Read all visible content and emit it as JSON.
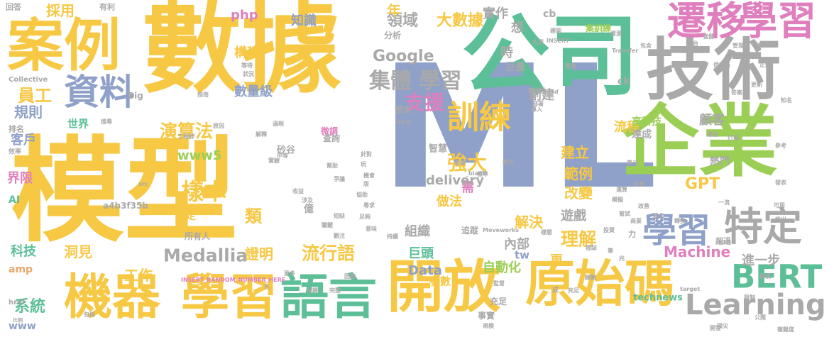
{
  "palette": {
    "yellow": "#f7c844",
    "teal": "#5dbf98",
    "blue": "#8fa1c8",
    "green": "#9bce55",
    "gray": "#a9a9a9",
    "pink": "#df7fbe",
    "orange": "#eaa76a",
    "light": "#d9d9d9"
  },
  "words": [
    {
      "t": "ML",
      "c": "blue"
    },
    {
      "t": "模型",
      "c": "yellow"
    },
    {
      "t": "數據",
      "c": "yellow"
    },
    {
      "t": "公司",
      "c": "teal"
    },
    {
      "t": "企業",
      "c": "green"
    },
    {
      "t": "技術",
      "c": "gray"
    },
    {
      "t": "案例",
      "c": "yellow"
    },
    {
      "t": "開放",
      "c": "yellow"
    },
    {
      "t": "原始碼",
      "c": "yellow"
    },
    {
      "t": "語言",
      "c": "teal"
    },
    {
      "t": "學習",
      "c": "yellow"
    },
    {
      "t": "機器",
      "c": "yellow"
    },
    {
      "t": "遷移",
      "c": "pink"
    },
    {
      "t": "學習",
      "c": "pink"
    },
    {
      "t": "特定",
      "c": "gray"
    },
    {
      "t": "資料",
      "c": "blue"
    },
    {
      "t": "學習",
      "c": "blue"
    },
    {
      "t": "BERT",
      "c": "teal"
    },
    {
      "t": "Learning",
      "c": "gray"
    },
    {
      "t": "訓練",
      "c": "yellow"
    },
    {
      "t": "集體 學習",
      "c": "gray"
    },
    {
      "t": "新",
      "c": "blue"
    },
    {
      "t": "支援",
      "c": "pink"
    },
    {
      "t": "樣本",
      "c": "yellow"
    },
    {
      "t": "Google",
      "c": "gray"
    },
    {
      "t": "強大",
      "c": "yellow"
    },
    {
      "t": "領域",
      "c": "gray"
    },
    {
      "t": "演算法",
      "c": "yellow"
    },
    {
      "t": "理解",
      "c": "yellow"
    },
    {
      "t": "Medallia",
      "c": "gray"
    },
    {
      "t": "員工",
      "c": "yellow"
    },
    {
      "t": "規則",
      "c": "blue"
    },
    {
      "t": "流行語",
      "c": "yellow"
    },
    {
      "t": "年",
      "c": "yellow"
    },
    {
      "t": "大數據",
      "c": "yellow"
    },
    {
      "t": "實作",
      "c": "gray"
    },
    {
      "t": "知識",
      "c": "blue"
    },
    {
      "t": "GPT",
      "c": "yellow"
    },
    {
      "t": "www5",
      "c": "green"
    },
    {
      "t": "Machine",
      "c": "pink"
    },
    {
      "t": "建立",
      "c": "yellow"
    },
    {
      "t": "改變",
      "c": "yellow"
    },
    {
      "t": "範例",
      "c": "yellow"
    },
    {
      "t": "流程",
      "c": "yellow"
    },
    {
      "t": "顧客",
      "c": "gray"
    },
    {
      "t": "創建",
      "c": "gray"
    },
    {
      "t": "做法",
      "c": "yellow"
    },
    {
      "t": "需",
      "c": "pink"
    },
    {
      "t": "類",
      "c": "yellow"
    },
    {
      "t": "構建",
      "c": "yellow"
    },
    {
      "t": "組織",
      "c": "gray"
    },
    {
      "t": "解決",
      "c": "yellow"
    },
    {
      "t": "遊戲",
      "c": "gray"
    },
    {
      "t": "Data",
      "c": "blue"
    },
    {
      "t": "delivery",
      "c": "gray"
    },
    {
      "t": "世界",
      "c": "teal"
    },
    {
      "t": "客戶",
      "c": "blue"
    },
    {
      "t": "界限",
      "c": "pink"
    },
    {
      "t": "科技",
      "c": "teal"
    },
    {
      "t": "洞見",
      "c": "yellow"
    },
    {
      "t": "系統",
      "c": "teal"
    },
    {
      "t": "採用",
      "c": "yellow"
    },
    {
      "t": "證明",
      "c": "yellow"
    },
    {
      "t": "數量級",
      "c": "blue"
    },
    {
      "t": "工作",
      "c": "yellow"
    },
    {
      "t": "巨頭",
      "c": "teal"
    },
    {
      "t": "內部",
      "c": "gray"
    },
    {
      "t": "tw",
      "c": "blue"
    },
    {
      "t": "更",
      "c": "yellow"
    },
    {
      "t": "自動化",
      "c": "green"
    },
    {
      "t": "參數",
      "c": "yellow"
    },
    {
      "t": "technews",
      "c": "teal"
    },
    {
      "t": "進一步",
      "c": "gray"
    },
    {
      "t": "高科技",
      "c": "green"
    },
    {
      "t": "達成",
      "c": "gray"
    },
    {
      "t": "www",
      "c": "blue"
    },
    {
      "t": "amp",
      "c": "orange"
    },
    {
      "t": "AI",
      "c": "teal"
    },
    {
      "t": "php",
      "c": "pink"
    },
    {
      "t": "cb",
      "c": "gray"
    },
    {
      "t": "時",
      "c": "gray"
    },
    {
      "t": "想",
      "c": "gray"
    },
    {
      "t": "億",
      "c": "gray"
    },
    {
      "t": "劃定",
      "c": "yellow"
    },
    {
      "t": "突破",
      "c": "yellow"
    },
    {
      "t": "所有人",
      "c": "gray"
    },
    {
      "t": "a4b3f35b",
      "c": "gray"
    },
    {
      "t": "砂谷",
      "c": "gray"
    },
    {
      "t": "微調",
      "c": "pink"
    },
    {
      "t": "查詢",
      "c": "gray"
    },
    {
      "t": "成",
      "c": "gray"
    },
    {
      "t": "熱門",
      "c": "gray"
    },
    {
      "t": "ck",
      "c": "gray"
    },
    {
      "t": "巨量",
      "c": "gray"
    },
    {
      "t": "分析",
      "c": "gray"
    },
    {
      "t": "集訓練",
      "c": "green"
    },
    {
      "t": "帶來",
      "c": "gray"
    },
    {
      "t": "智慧",
      "c": "gray"
    },
    {
      "t": "事實",
      "c": "gray"
    },
    {
      "t": "充足",
      "c": "gray"
    },
    {
      "t": "追蹤",
      "c": "gray"
    },
    {
      "t": "力",
      "c": "gray"
    },
    {
      "t": "超過",
      "c": "gray"
    },
    {
      "t": "回答",
      "c": "gray"
    },
    {
      "t": "有利",
      "c": "gray"
    },
    {
      "t": "排名",
      "c": "gray"
    },
    {
      "t": "效率",
      "c": "gray"
    },
    {
      "t": "href",
      "c": "gray"
    },
    {
      "t": "img",
      "c": "gray"
    },
    {
      "t": "Collective",
      "c": "gray"
    },
    {
      "t": "Big",
      "c": "gray"
    },
    {
      "t": "INSERT_RANDOM_NUMBER_HERE",
      "c": "pink"
    },
    {
      "t": "Moveworks",
      "c": "gray"
    },
    {
      "t": "Transfer",
      "c": "gray"
    },
    {
      "t": "zoneid",
      "c": "gray"
    },
    {
      "t": "NLP",
      "c": "gray"
    },
    {
      "t": "target",
      "c": "gray"
    },
    {
      "t": "src",
      "c": "gray"
    },
    {
      "t": "_blank",
      "c": "gray"
    },
    {
      "t": "INSERT",
      "c": "gray"
    },
    {
      "t": "美元",
      "c": "gray"
    },
    {
      "t": "頂尖",
      "c": "gray"
    },
    {
      "t": "複雜度",
      "c": "gray"
    },
    {
      "t": "暴力",
      "c": "gray"
    },
    {
      "t": "包括",
      "c": "gray"
    },
    {
      "t": "比例",
      "c": "gray"
    },
    {
      "t": "管理",
      "c": "gray"
    },
    {
      "t": "平台",
      "c": "gray"
    },
    {
      "t": "供應商",
      "c": "gray"
    },
    {
      "t": "打造",
      "c": "gray"
    },
    {
      "t": "答案",
      "c": "gray"
    },
    {
      "t": "知名",
      "c": "gray"
    },
    {
      "t": "發表",
      "c": "gray"
    },
    {
      "t": "規模",
      "c": "gray"
    },
    {
      "t": "公開",
      "c": "gray"
    },
    {
      "t": "開發",
      "c": "gray"
    },
    {
      "t": "意味",
      "c": "gray"
    },
    {
      "t": "實驗",
      "c": "gray"
    },
    {
      "t": "搜尋",
      "c": "gray"
    },
    {
      "t": "指南",
      "c": "gray"
    },
    {
      "t": "等待",
      "c": "gray"
    },
    {
      "t": "狀況",
      "c": "gray"
    },
    {
      "t": "應用到",
      "c": "gray"
    },
    {
      "t": "部署",
      "c": "gray"
    },
    {
      "t": "專家",
      "c": "gray"
    },
    {
      "t": "正好",
      "c": "gray"
    },
    {
      "t": "強健",
      "c": "gray"
    },
    {
      "t": "確認",
      "c": "gray"
    },
    {
      "t": "資源",
      "c": "gray"
    },
    {
      "t": "包含",
      "c": "gray"
    },
    {
      "t": "社群界",
      "c": "gray"
    },
    {
      "t": "中等",
      "c": "gray"
    },
    {
      "t": "工程師",
      "c": "gray"
    },
    {
      "t": "足夠",
      "c": "gray"
    },
    {
      "t": "樣態",
      "c": "gray"
    },
    {
      "t": "模擬",
      "c": "gray"
    },
    {
      "t": "商業",
      "c": "gray"
    },
    {
      "t": "筆",
      "c": "gray"
    },
    {
      "t": "兆",
      "c": "gray"
    },
    {
      "t": "收益",
      "c": "gray"
    },
    {
      "t": "涉及",
      "c": "gray"
    },
    {
      "t": "一流",
      "c": "gray"
    },
    {
      "t": "嘗試",
      "c": "gray"
    },
    {
      "t": "轉換",
      "c": "gray"
    },
    {
      "t": "重疊",
      "c": "gray"
    },
    {
      "t": "標準",
      "c": "gray"
    },
    {
      "t": "數北",
      "c": "gray"
    },
    {
      "t": "機會",
      "c": "gray"
    },
    {
      "t": "因應",
      "c": "gray"
    },
    {
      "t": "解釋",
      "c": "gray"
    },
    {
      "t": "原因",
      "c": "gray"
    },
    {
      "t": "過程",
      "c": "gray"
    },
    {
      "t": "回歸",
      "c": "gray"
    },
    {
      "t": "完整",
      "c": "gray"
    },
    {
      "t": "爭議",
      "c": "gray"
    },
    {
      "t": "監督",
      "c": "gray"
    },
    {
      "t": "標誌",
      "c": "gray"
    },
    {
      "t": "導入",
      "c": "gray"
    },
    {
      "t": "歸類",
      "c": "gray"
    },
    {
      "t": "更新",
      "c": "gray"
    },
    {
      "t": "結構",
      "c": "gray"
    },
    {
      "t": "更多",
      "c": "gray"
    },
    {
      "t": "幫助",
      "c": "gray"
    },
    {
      "t": "大型",
      "c": "gray"
    },
    {
      "t": "約",
      "c": "gray"
    },
    {
      "t": "充足",
      "c": "gray"
    },
    {
      "t": "多數",
      "c": "gray"
    },
    {
      "t": "運算",
      "c": "gray"
    },
    {
      "t": "限制",
      "c": "gray"
    },
    {
      "t": "適合",
      "c": "gray"
    },
    {
      "t": "參考",
      "c": "gray"
    },
    {
      "t": "可用",
      "c": "gray"
    },
    {
      "t": "推出",
      "c": "gray"
    },
    {
      "t": "改善",
      "c": "gray"
    },
    {
      "t": "投資",
      "c": "gray"
    },
    {
      "t": "持續",
      "c": "gray"
    },
    {
      "t": "版",
      "c": "gray"
    },
    {
      "t": "尋求",
      "c": "gray"
    },
    {
      "t": "短缺",
      "c": "gray"
    },
    {
      "t": "關鍵",
      "c": "gray"
    },
    {
      "t": "觀注",
      "c": "gray"
    },
    {
      "t": "先",
      "c": "gray"
    },
    {
      "t": "針對",
      "c": "gray"
    },
    {
      "t": "玩",
      "c": "gray"
    },
    {
      "t": "協助",
      "c": "gray"
    },
    {
      "t": "收集",
      "c": "gray"
    },
    {
      "t": "團隊",
      "c": "gray"
    },
    {
      "t": "條件",
      "c": "gray"
    },
    {
      "t": "軟體",
      "c": "gray"
    },
    {
      "t": "充裕",
      "c": "gray"
    },
    {
      "t": "定制",
      "c": "gray"
    },
    {
      "t": "困難",
      "c": "gray"
    },
    {
      "t": "蒐集",
      "c": "gray"
    }
  ]
}
